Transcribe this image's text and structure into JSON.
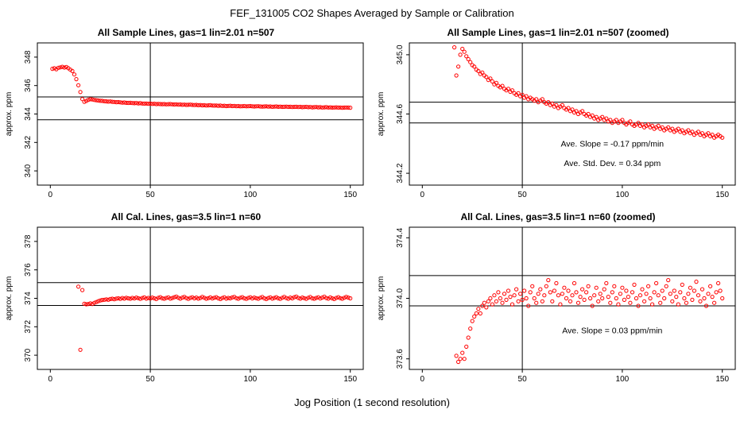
{
  "chart_data": {
    "type": "scatter",
    "figure_title": "FEF_131005  CO2 Shapes Averaged by Sample or Calibration",
    "xlabel": "Jog Position (1 second resolution)",
    "marker_color": "#ff0000",
    "grid": "off",
    "series": {
      "sample": [
        [
          1,
          347.18
        ],
        [
          2,
          347.22
        ],
        [
          3,
          347.15
        ],
        [
          4,
          347.25
        ],
        [
          5,
          347.28
        ],
        [
          6,
          347.32
        ],
        [
          7,
          347.27
        ],
        [
          8,
          347.3
        ],
        [
          9,
          347.22
        ],
        [
          10,
          347.12
        ],
        [
          11,
          347.02
        ],
        [
          12,
          346.78
        ],
        [
          13,
          346.45
        ],
        [
          14,
          346.02
        ],
        [
          15,
          345.55
        ],
        [
          16,
          345.05
        ],
        [
          17,
          344.86
        ],
        [
          18,
          344.92
        ],
        [
          19,
          345.0
        ],
        [
          20,
          345.04
        ],
        [
          21,
          345.02
        ],
        [
          22,
          344.99
        ],
        [
          23,
          344.97
        ],
        [
          24,
          344.95
        ],
        [
          25,
          344.93
        ],
        [
          26,
          344.92
        ],
        [
          27,
          344.9
        ],
        [
          28,
          344.89
        ],
        [
          29,
          344.87
        ],
        [
          30,
          344.88
        ],
        [
          31,
          344.86
        ],
        [
          32,
          344.85
        ],
        [
          33,
          344.83
        ],
        [
          34,
          344.84
        ],
        [
          35,
          344.82
        ],
        [
          36,
          344.8
        ],
        [
          37,
          344.81
        ],
        [
          38,
          344.79
        ],
        [
          39,
          344.78
        ],
        [
          40,
          344.79
        ],
        [
          41,
          344.77
        ],
        [
          42,
          344.76
        ],
        [
          43,
          344.77
        ],
        [
          44,
          344.75
        ],
        [
          45,
          344.76
        ],
        [
          46,
          344.74
        ],
        [
          47,
          344.73
        ],
        [
          48,
          344.74
        ],
        [
          49,
          344.72
        ],
        [
          50,
          344.73
        ],
        [
          51,
          344.71
        ],
        [
          52,
          344.72
        ],
        [
          53,
          344.7
        ],
        [
          54,
          344.71
        ],
        [
          55,
          344.7
        ],
        [
          56,
          344.69
        ],
        [
          57,
          344.7
        ],
        [
          58,
          344.68
        ],
        [
          59,
          344.69
        ],
        [
          60,
          344.7
        ],
        [
          61,
          344.68
        ],
        [
          62,
          344.67
        ],
        [
          63,
          344.68
        ],
        [
          64,
          344.66
        ],
        [
          65,
          344.67
        ],
        [
          66,
          344.65
        ],
        [
          67,
          344.66
        ],
        [
          68,
          344.64
        ],
        [
          69,
          344.65
        ],
        [
          70,
          344.66
        ],
        [
          71,
          344.64
        ],
        [
          72,
          344.63
        ],
        [
          73,
          344.64
        ],
        [
          74,
          344.62
        ],
        [
          75,
          344.63
        ],
        [
          76,
          344.61
        ],
        [
          77,
          344.62
        ],
        [
          78,
          344.6
        ],
        [
          79,
          344.61
        ],
        [
          80,
          344.62
        ],
        [
          81,
          344.6
        ],
        [
          82,
          344.59
        ],
        [
          83,
          344.6
        ],
        [
          84,
          344.58
        ],
        [
          85,
          344.59
        ],
        [
          86,
          344.57
        ],
        [
          87,
          344.58
        ],
        [
          88,
          344.56
        ],
        [
          89,
          344.57
        ],
        [
          90,
          344.58
        ],
        [
          91,
          344.56
        ],
        [
          92,
          344.57
        ],
        [
          93,
          344.55
        ],
        [
          94,
          344.56
        ],
        [
          95,
          344.54
        ],
        [
          96,
          344.55
        ],
        [
          97,
          344.56
        ],
        [
          98,
          344.54
        ],
        [
          99,
          344.55
        ],
        [
          100,
          344.56
        ],
        [
          101,
          344.54
        ],
        [
          102,
          344.53
        ],
        [
          103,
          344.54
        ],
        [
          104,
          344.55
        ],
        [
          105,
          344.53
        ],
        [
          106,
          344.52
        ],
        [
          107,
          344.53
        ],
        [
          108,
          344.54
        ],
        [
          109,
          344.52
        ],
        [
          110,
          344.53
        ],
        [
          111,
          344.51
        ],
        [
          112,
          344.52
        ],
        [
          113,
          344.53
        ],
        [
          114,
          344.51
        ],
        [
          115,
          344.52
        ],
        [
          116,
          344.5
        ],
        [
          117,
          344.51
        ],
        [
          118,
          344.52
        ],
        [
          119,
          344.5
        ],
        [
          120,
          344.51
        ],
        [
          121,
          344.49
        ],
        [
          122,
          344.5
        ],
        [
          123,
          344.51
        ],
        [
          124,
          344.49
        ],
        [
          125,
          344.5
        ],
        [
          126,
          344.48
        ],
        [
          127,
          344.49
        ],
        [
          128,
          344.5
        ],
        [
          129,
          344.48
        ],
        [
          130,
          344.49
        ],
        [
          131,
          344.47
        ],
        [
          132,
          344.48
        ],
        [
          133,
          344.49
        ],
        [
          134,
          344.47
        ],
        [
          135,
          344.48
        ],
        [
          136,
          344.46
        ],
        [
          137,
          344.47
        ],
        [
          138,
          344.48
        ],
        [
          139,
          344.46
        ],
        [
          140,
          344.47
        ],
        [
          141,
          344.45
        ],
        [
          142,
          344.46
        ],
        [
          143,
          344.47
        ],
        [
          144,
          344.45
        ],
        [
          145,
          344.46
        ],
        [
          146,
          344.44
        ],
        [
          147,
          344.45
        ],
        [
          148,
          344.46
        ],
        [
          149,
          344.45
        ],
        [
          150,
          344.44
        ]
      ],
      "cal": [
        [
          14,
          374.82
        ],
        [
          15,
          370.38
        ],
        [
          16,
          374.58
        ],
        [
          17,
          373.62
        ],
        [
          18,
          373.58
        ],
        [
          19,
          373.6
        ],
        [
          20,
          373.64
        ],
        [
          21,
          373.6
        ],
        [
          22,
          373.68
        ],
        [
          23,
          373.74
        ],
        [
          24,
          373.8
        ],
        [
          25,
          373.85
        ],
        [
          26,
          373.88
        ],
        [
          27,
          373.9
        ],
        [
          28,
          373.93
        ],
        [
          29,
          373.9
        ],
        [
          30,
          373.95
        ],
        [
          31,
          373.97
        ],
        [
          32,
          373.94
        ],
        [
          33,
          373.98
        ],
        [
          34,
          374.0
        ],
        [
          35,
          373.96
        ],
        [
          36,
          374.02
        ],
        [
          37,
          373.98
        ],
        [
          38,
          374.04
        ],
        [
          39,
          374.0
        ],
        [
          40,
          373.97
        ],
        [
          41,
          374.03
        ],
        [
          42,
          373.99
        ],
        [
          43,
          374.05
        ],
        [
          44,
          374.01
        ],
        [
          45,
          373.96
        ],
        [
          46,
          374.02
        ],
        [
          47,
          374.06
        ],
        [
          48,
          373.98
        ],
        [
          49,
          374.03
        ],
        [
          50,
          373.99
        ],
        [
          51,
          374.05
        ],
        [
          52,
          374.0
        ],
        [
          53,
          373.95
        ],
        [
          54,
          374.04
        ],
        [
          55,
          374.08
        ],
        [
          56,
          374.0
        ],
        [
          57,
          373.97
        ],
        [
          58,
          374.03
        ],
        [
          59,
          374.06
        ],
        [
          60,
          373.98
        ],
        [
          61,
          374.02
        ],
        [
          62,
          374.08
        ],
        [
          63,
          374.12
        ],
        [
          64,
          374.04
        ],
        [
          65,
          373.98
        ],
        [
          66,
          374.05
        ],
        [
          67,
          374.1
        ],
        [
          68,
          374.02
        ],
        [
          69,
          373.96
        ],
        [
          70,
          374.03
        ],
        [
          71,
          374.07
        ],
        [
          72,
          374.0
        ],
        [
          73,
          374.05
        ],
        [
          74,
          373.98
        ],
        [
          75,
          374.02
        ],
        [
          76,
          374.1
        ],
        [
          77,
          374.04
        ],
        [
          78,
          373.97
        ],
        [
          79,
          374.01
        ],
        [
          80,
          374.06
        ],
        [
          81,
          373.99
        ],
        [
          82,
          374.04
        ],
        [
          83,
          374.08
        ],
        [
          84,
          374.0
        ],
        [
          85,
          373.95
        ],
        [
          86,
          374.02
        ],
        [
          87,
          374.07
        ],
        [
          88,
          373.98
        ],
        [
          89,
          374.03
        ],
        [
          90,
          374.0
        ],
        [
          91,
          374.06
        ],
        [
          92,
          374.1
        ],
        [
          93,
          374.01
        ],
        [
          94,
          373.97
        ],
        [
          95,
          374.04
        ],
        [
          96,
          374.08
        ],
        [
          97,
          374.0
        ],
        [
          98,
          373.96
        ],
        [
          99,
          374.03
        ],
        [
          100,
          374.07
        ],
        [
          101,
          373.99
        ],
        [
          102,
          374.05
        ],
        [
          103,
          374.01
        ],
        [
          104,
          373.97
        ],
        [
          105,
          374.04
        ],
        [
          106,
          374.09
        ],
        [
          107,
          374.0
        ],
        [
          108,
          373.95
        ],
        [
          109,
          374.02
        ],
        [
          110,
          374.06
        ],
        [
          111,
          373.98
        ],
        [
          112,
          374.03
        ],
        [
          113,
          374.08
        ],
        [
          114,
          374.0
        ],
        [
          115,
          373.96
        ],
        [
          116,
          374.04
        ],
        [
          117,
          374.1
        ],
        [
          118,
          374.02
        ],
        [
          119,
          373.97
        ],
        [
          120,
          374.05
        ],
        [
          121,
          374.0
        ],
        [
          122,
          374.08
        ],
        [
          123,
          374.12
        ],
        [
          124,
          374.03
        ],
        [
          125,
          373.98
        ],
        [
          126,
          374.05
        ],
        [
          127,
          374.01
        ],
        [
          128,
          373.96
        ],
        [
          129,
          374.04
        ],
        [
          130,
          374.09
        ],
        [
          131,
          374.0
        ],
        [
          132,
          373.97
        ],
        [
          133,
          374.03
        ],
        [
          134,
          374.07
        ],
        [
          135,
          373.99
        ],
        [
          136,
          374.05
        ],
        [
          137,
          374.11
        ],
        [
          138,
          374.02
        ],
        [
          139,
          373.98
        ],
        [
          140,
          374.06
        ],
        [
          141,
          374.0
        ],
        [
          142,
          373.95
        ],
        [
          143,
          374.03
        ],
        [
          144,
          374.08
        ],
        [
          145,
          374.01
        ],
        [
          146,
          373.97
        ],
        [
          147,
          374.04
        ],
        [
          148,
          374.1
        ],
        [
          149,
          374.05
        ],
        [
          150,
          374.0
        ]
      ]
    },
    "panels": [
      {
        "title": "All Sample Lines, gas=1 lin=2.01 n=507",
        "series": "sample",
        "ylabel": "approx. ppm",
        "xlim": [
          -6.5,
          156.5
        ],
        "ylim": [
          339.0,
          349.0
        ],
        "xticks": [
          0,
          50,
          100,
          150
        ],
        "xtick_labels": [
          "0",
          "50",
          "100",
          "150"
        ],
        "yticks": [
          340,
          342,
          344,
          346,
          348
        ],
        "ytick_labels": [
          "340",
          "342",
          "344",
          "346",
          "348"
        ],
        "hlines": [
          345.2,
          343.6
        ],
        "vlines": [
          50
        ],
        "annotations": []
      },
      {
        "title": "All Sample Lines, gas=1 lin=2.01 n=507 (zoomed)",
        "series": "sample",
        "ylabel": "approx. ppm",
        "xlim": [
          -6.5,
          156.5
        ],
        "ylim": [
          344.12,
          345.08
        ],
        "xticks": [
          0,
          50,
          100,
          150
        ],
        "xtick_labels": [
          "0",
          "50",
          "100",
          "150"
        ],
        "yticks": [
          344.2,
          344.6,
          345.0
        ],
        "ytick_labels": [
          "344.2",
          "344.6",
          "345.0"
        ],
        "hlines": [
          344.68,
          344.54
        ],
        "vlines": [
          50
        ],
        "annotations": [
          {
            "text": "Ave. Slope =  -0.17  ppm/min",
            "x": 95,
            "y": 344.38
          },
          {
            "text": "Ave. Std. Dev. =  0.34  ppm",
            "x": 95,
            "y": 344.25
          }
        ]
      },
      {
        "title": "All Cal. Lines, gas=3.5 lin=1 n=60",
        "series": "cal",
        "ylabel": "approx. ppm",
        "xlim": [
          -6.5,
          156.5
        ],
        "ylim": [
          369.0,
          379.0
        ],
        "xticks": [
          0,
          50,
          100,
          150
        ],
        "xtick_labels": [
          "0",
          "50",
          "100",
          "150"
        ],
        "yticks": [
          370,
          372,
          374,
          376,
          378
        ],
        "ytick_labels": [
          "370",
          "372",
          "374",
          "376",
          "378"
        ],
        "hlines": [
          375.1,
          373.5
        ],
        "vlines": [
          50
        ],
        "annotations": []
      },
      {
        "title": "All Cal. Lines, gas=3.5 lin=1 n=60 (zoomed)",
        "series": "cal",
        "ylabel": "approx. ppm",
        "xlim": [
          -6.5,
          156.5
        ],
        "ylim": [
          373.53,
          374.47
        ],
        "xticks": [
          0,
          50,
          100,
          150
        ],
        "xtick_labels": [
          "0",
          "50",
          "100",
          "150"
        ],
        "yticks": [
          373.6,
          374.0,
          374.4
        ],
        "ytick_labels": [
          "373.6",
          "374.0",
          "374.4"
        ],
        "hlines": [
          374.15,
          373.95
        ],
        "vlines": [
          50
        ],
        "annotations": [
          {
            "text": "Ave. Slope =  0.03  ppm/min",
            "x": 95,
            "y": 373.77
          }
        ]
      }
    ]
  }
}
